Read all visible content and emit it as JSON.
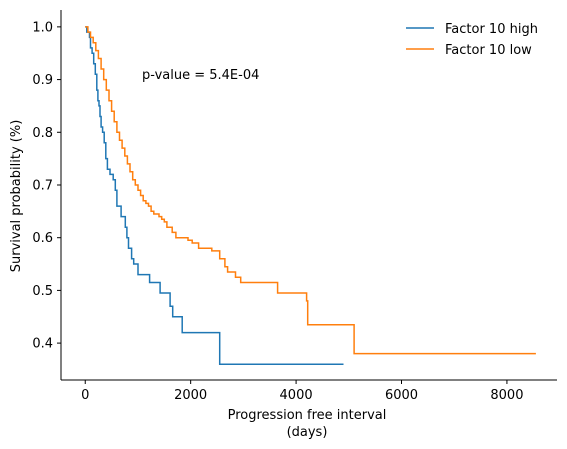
{
  "chart_data": {
    "type": "line",
    "title": "",
    "xlabel": "Progression free interval",
    "xlabel_unit": "(days)",
    "ylabel": "Survival probability (%)",
    "xlim": [
      -460,
      8950
    ],
    "ylim": [
      0.33,
      1.032
    ],
    "xticks": [
      0,
      2000,
      4000,
      6000,
      8000
    ],
    "xtick_labels": [
      "0",
      "2000",
      "4000",
      "6000",
      "8000"
    ],
    "yticks": [
      0.4,
      0.5,
      0.6,
      0.7,
      0.8,
      0.9,
      1.0
    ],
    "ytick_labels": [
      "0.4",
      "0.5",
      "0.6",
      "0.7",
      "0.8",
      "0.9",
      "1.0"
    ],
    "grid": false,
    "legend_position": "top-right",
    "annotation": "p-value = 5.4E-04",
    "series": [
      {
        "name": "Factor 10 high",
        "color": "#1f77b4",
        "step": true,
        "points": [
          [
            0,
            1.0
          ],
          [
            30,
            0.99
          ],
          [
            80,
            0.98
          ],
          [
            100,
            0.96
          ],
          [
            130,
            0.95
          ],
          [
            160,
            0.93
          ],
          [
            190,
            0.91
          ],
          [
            220,
            0.88
          ],
          [
            240,
            0.86
          ],
          [
            260,
            0.85
          ],
          [
            280,
            0.83
          ],
          [
            300,
            0.81
          ],
          [
            330,
            0.8
          ],
          [
            360,
            0.78
          ],
          [
            390,
            0.75
          ],
          [
            420,
            0.73
          ],
          [
            470,
            0.72
          ],
          [
            530,
            0.71
          ],
          [
            570,
            0.69
          ],
          [
            600,
            0.66
          ],
          [
            680,
            0.64
          ],
          [
            760,
            0.62
          ],
          [
            790,
            0.6
          ],
          [
            820,
            0.58
          ],
          [
            880,
            0.56
          ],
          [
            920,
            0.55
          ],
          [
            1000,
            0.53
          ],
          [
            1220,
            0.515
          ],
          [
            1420,
            0.495
          ],
          [
            1610,
            0.47
          ],
          [
            1660,
            0.45
          ],
          [
            1840,
            0.42
          ],
          [
            2550,
            0.36
          ],
          [
            4900,
            0.36
          ]
        ]
      },
      {
        "name": "Factor 10 low",
        "color": "#ff7f0e",
        "step": true,
        "points": [
          [
            0,
            1.0
          ],
          [
            50,
            0.99
          ],
          [
            100,
            0.98
          ],
          [
            150,
            0.97
          ],
          [
            200,
            0.955
          ],
          [
            250,
            0.94
          ],
          [
            300,
            0.92
          ],
          [
            350,
            0.9
          ],
          [
            400,
            0.88
          ],
          [
            450,
            0.86
          ],
          [
            500,
            0.84
          ],
          [
            550,
            0.82
          ],
          [
            600,
            0.8
          ],
          [
            650,
            0.785
          ],
          [
            700,
            0.77
          ],
          [
            750,
            0.755
          ],
          [
            800,
            0.74
          ],
          [
            850,
            0.725
          ],
          [
            900,
            0.71
          ],
          [
            950,
            0.7
          ],
          [
            1000,
            0.69
          ],
          [
            1050,
            0.68
          ],
          [
            1100,
            0.67
          ],
          [
            1150,
            0.665
          ],
          [
            1200,
            0.66
          ],
          [
            1250,
            0.65
          ],
          [
            1300,
            0.645
          ],
          [
            1400,
            0.64
          ],
          [
            1450,
            0.635
          ],
          [
            1500,
            0.63
          ],
          [
            1550,
            0.62
          ],
          [
            1650,
            0.61
          ],
          [
            1720,
            0.6
          ],
          [
            1950,
            0.595
          ],
          [
            2030,
            0.59
          ],
          [
            2150,
            0.58
          ],
          [
            2400,
            0.575
          ],
          [
            2550,
            0.56
          ],
          [
            2650,
            0.545
          ],
          [
            2700,
            0.535
          ],
          [
            2850,
            0.525
          ],
          [
            2950,
            0.515
          ],
          [
            3650,
            0.495
          ],
          [
            4200,
            0.48
          ],
          [
            4220,
            0.435
          ],
          [
            5100,
            0.38
          ],
          [
            8550,
            0.38
          ]
        ]
      }
    ]
  }
}
